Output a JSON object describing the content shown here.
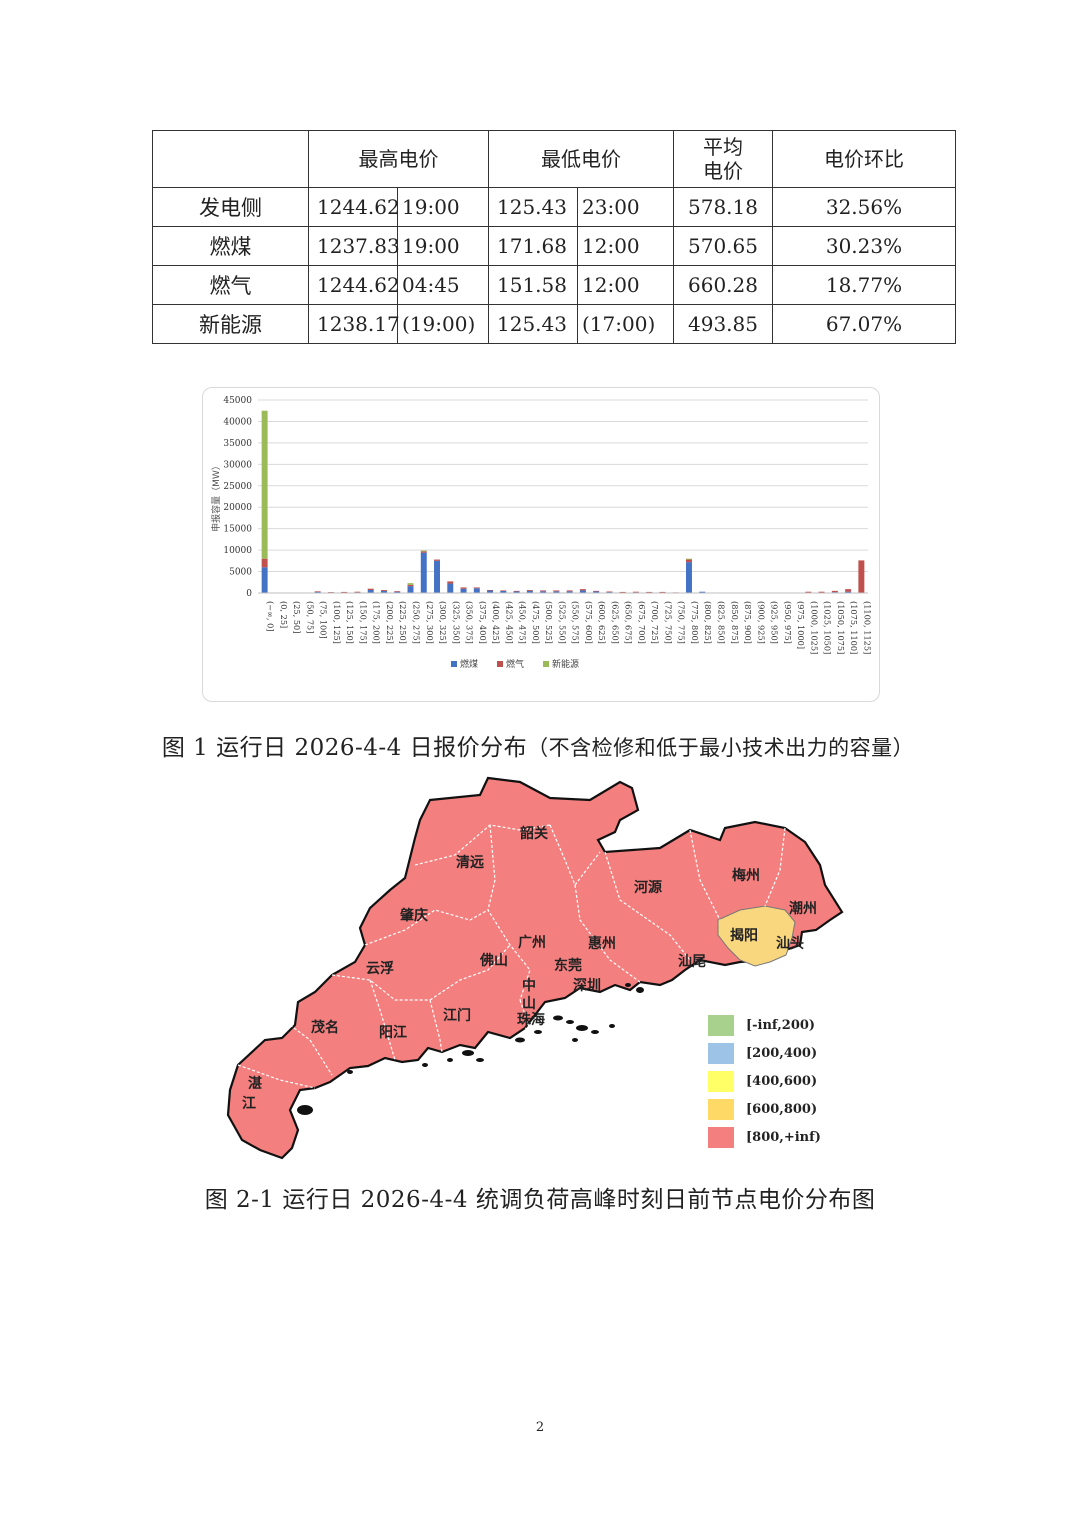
{
  "table": {
    "headers": [
      "",
      "最高电价",
      "最低电价",
      "平均电价_line1",
      "电价环比"
    ],
    "header_labels": {
      "blank": "",
      "max": "最高电价",
      "min": "最低电价",
      "avg_line1": "平均",
      "avg_line2": "电价",
      "mom": "电价环比"
    },
    "rows": [
      {
        "category": "发电侧",
        "max_price": "1244.62",
        "max_time": "19:00",
        "min_price": "125.43",
        "min_time": "23:00",
        "avg": "578.18",
        "mom": "32.56%"
      },
      {
        "category": "燃煤",
        "max_price": "1237.83",
        "max_time": "19:00",
        "min_price": "171.68",
        "min_time": "12:00",
        "avg": "570.65",
        "mom": "30.23%"
      },
      {
        "category": "燃气",
        "max_price": "1244.62",
        "max_time": "04:45",
        "min_price": "151.58",
        "min_time": "12:00",
        "avg": "660.28",
        "mom": "18.77%"
      },
      {
        "category": "新能源",
        "max_price": "1238.17",
        "max_time": "(19:00)",
        "min_price": "125.43",
        "min_time": "(17:00)",
        "avg": "493.85",
        "mom": "67.07%"
      }
    ]
  },
  "chart_data": {
    "type": "bar",
    "stacked": true,
    "ylabel": "申报容量（MW）",
    "ylim": [
      0,
      45000
    ],
    "yticks": [
      0,
      5000,
      10000,
      15000,
      20000,
      25000,
      30000,
      35000,
      40000,
      45000
    ],
    "grid": true,
    "legend_position": "bottom",
    "categories": [
      "(−∞, 0]",
      "(0, 25]",
      "(25, 50]",
      "(50, 75]",
      "(75, 100]",
      "(100, 125]",
      "(125, 150]",
      "(150, 175]",
      "(175, 200]",
      "(200, 225]",
      "(225, 250]",
      "(250, 275]",
      "(275, 300]",
      "(300, 325]",
      "(325, 350]",
      "(350, 375]",
      "(375, 400]",
      "(400, 425]",
      "(425, 450]",
      "(450, 475]",
      "(475, 500]",
      "(500, 525]",
      "(525, 550]",
      "(550, 575]",
      "(575, 600]",
      "(600, 625]",
      "(625, 650]",
      "(650, 675]",
      "(675, 700]",
      "(700, 725]",
      "(725, 750]",
      "(750, 775]",
      "(775, 800]",
      "(800, 825]",
      "(825, 850]",
      "(850, 875]",
      "(875, 900]",
      "(900, 925]",
      "(925, 950]",
      "(950, 975]",
      "(975, 1000]",
      "(1000, 1025]",
      "(1025, 1050]",
      "(1050, 1075]",
      "(1075, 1100]",
      "(1100, 1125]"
    ],
    "series": [
      {
        "name": "燃煤",
        "color": "#4472c4",
        "values": [
          6000,
          0,
          0,
          100,
          300,
          150,
          200,
          200,
          700,
          500,
          300,
          1600,
          9400,
          7500,
          2200,
          1000,
          1100,
          600,
          500,
          400,
          500,
          400,
          400,
          400,
          600,
          400,
          300,
          200,
          200,
          200,
          200,
          100,
          7200,
          300,
          0,
          0,
          0,
          100,
          0,
          0,
          0,
          100,
          100,
          200,
          300,
          0
        ]
      },
      {
        "name": "燃气",
        "color": "#c0504d",
        "values": [
          2000,
          0,
          0,
          0,
          100,
          50,
          50,
          100,
          300,
          200,
          150,
          300,
          300,
          300,
          500,
          300,
          200,
          100,
          100,
          100,
          200,
          200,
          200,
          200,
          300,
          100,
          50,
          50,
          100,
          50,
          50,
          50,
          600,
          0,
          0,
          0,
          0,
          0,
          0,
          0,
          0,
          200,
          200,
          300,
          600,
          7600
        ]
      },
      {
        "name": "新能源",
        "color": "#9bbb59",
        "values": [
          34500,
          0,
          0,
          0,
          0,
          0,
          0,
          0,
          0,
          0,
          0,
          400,
          200,
          0,
          0,
          0,
          0,
          0,
          0,
          0,
          0,
          0,
          0,
          0,
          0,
          0,
          0,
          0,
          0,
          0,
          0,
          0,
          200,
          0,
          0,
          0,
          0,
          0,
          0,
          0,
          0,
          0,
          0,
          0,
          0,
          0
        ]
      }
    ]
  },
  "captions": {
    "fig1": "图 1  运行日 2026-4-4 日报价分布",
    "fig1_note": "（不含检修和低于最小技术出力的容量）",
    "fig2": "图 2-1  运行日 2026-4-4 统调负荷高峰时刻日前节点电价分布图"
  },
  "map": {
    "fill_color": "#f47f7f",
    "highlight_color": "#f9d77e",
    "labels": {
      "shaoguan": "韶关",
      "qingyuan": "清远",
      "heyuan": "河源",
      "meizhou": "梅州",
      "chaozhou": "潮州",
      "jieyang": "揭阳",
      "shantou": "汕头",
      "zhaoqing": "肇庆",
      "guangzhou": "广州",
      "huizhou": "惠州",
      "foshan": "佛山",
      "dongguan": "东莞",
      "shanwei": "汕尾",
      "yunfu": "云浮",
      "zhong": "中",
      "shan": "山",
      "shenzhen": "深圳",
      "jiangmen": "江门",
      "zhuhai": "珠海",
      "maoming": "茂名",
      "yangjiang": "阳江",
      "zhan": "湛",
      "jiang": "江"
    }
  },
  "legend": [
    {
      "label": "[-inf,200)",
      "color": "#a9d18e"
    },
    {
      "label": "[200,400)",
      "color": "#9dc3e6"
    },
    {
      "label": "[400,600)",
      "color": "#ffff66"
    },
    {
      "label": "[600,800)",
      "color": "#ffd966"
    },
    {
      "label": "[800,+inf)",
      "color": "#f47f7f"
    }
  ],
  "page_number": "2"
}
